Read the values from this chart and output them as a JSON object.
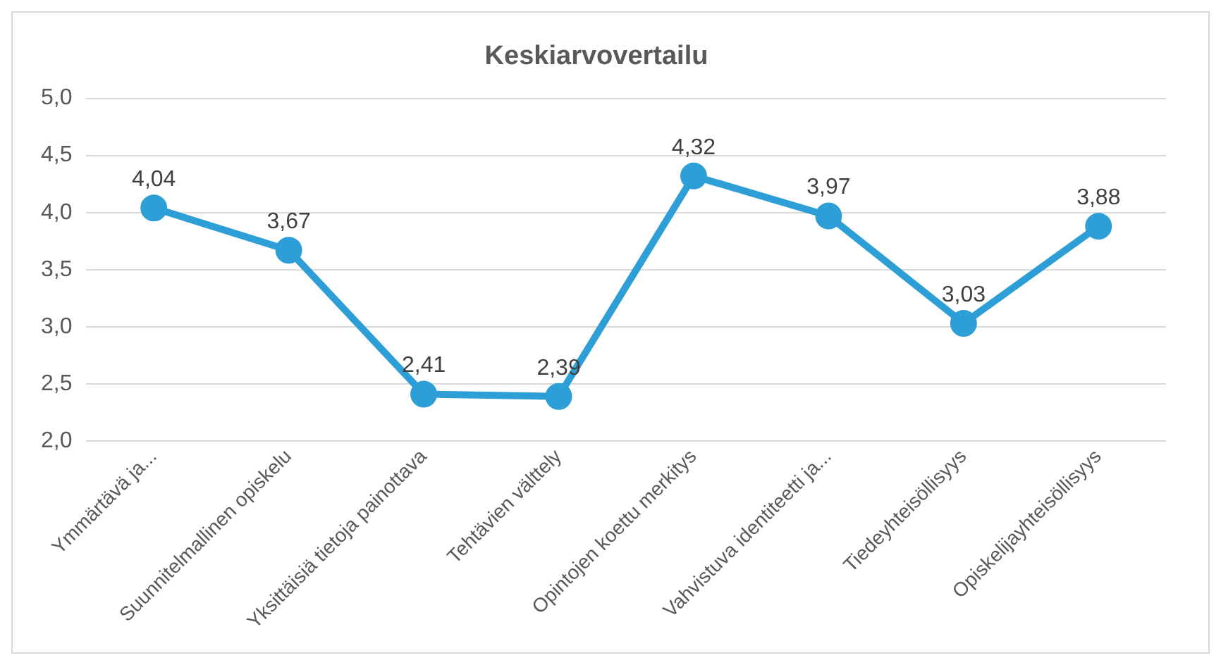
{
  "chart_data": {
    "type": "line",
    "title": "Keskiarvovertailu",
    "categories": [
      "Ymmärtävä ja...",
      "Suunnitelmallinen opiskelu",
      "Yksittäisiä tietoja painottava",
      "Tehtävien välttely",
      "Opintojen koettu merkitys",
      "Vahvistuva identiteetti ja...",
      "Tiedeyhteisöllisyys",
      "Opiskelijayhteisöllisyys"
    ],
    "values": [
      4.04,
      3.67,
      2.41,
      2.39,
      4.32,
      3.97,
      3.03,
      3.88
    ],
    "value_labels": [
      "4,04",
      "3,67",
      "2,41",
      "2,39",
      "4,32",
      "3,97",
      "3,03",
      "3,88"
    ],
    "color": "#2e9fd6",
    "ylim": [
      2,
      5
    ],
    "yticks": [
      {
        "value": 2,
        "label": "2,0"
      },
      {
        "value": 2.5,
        "label": "2,5"
      },
      {
        "value": 3,
        "label": "3,0"
      },
      {
        "value": 3.5,
        "label": "3,5"
      },
      {
        "value": 4,
        "label": "4,0"
      },
      {
        "value": 4.5,
        "label": "4,5"
      },
      {
        "value": 5,
        "label": "5,0"
      }
    ],
    "grid": "y",
    "marker": "circle",
    "line_style": "solid",
    "legend": false
  }
}
